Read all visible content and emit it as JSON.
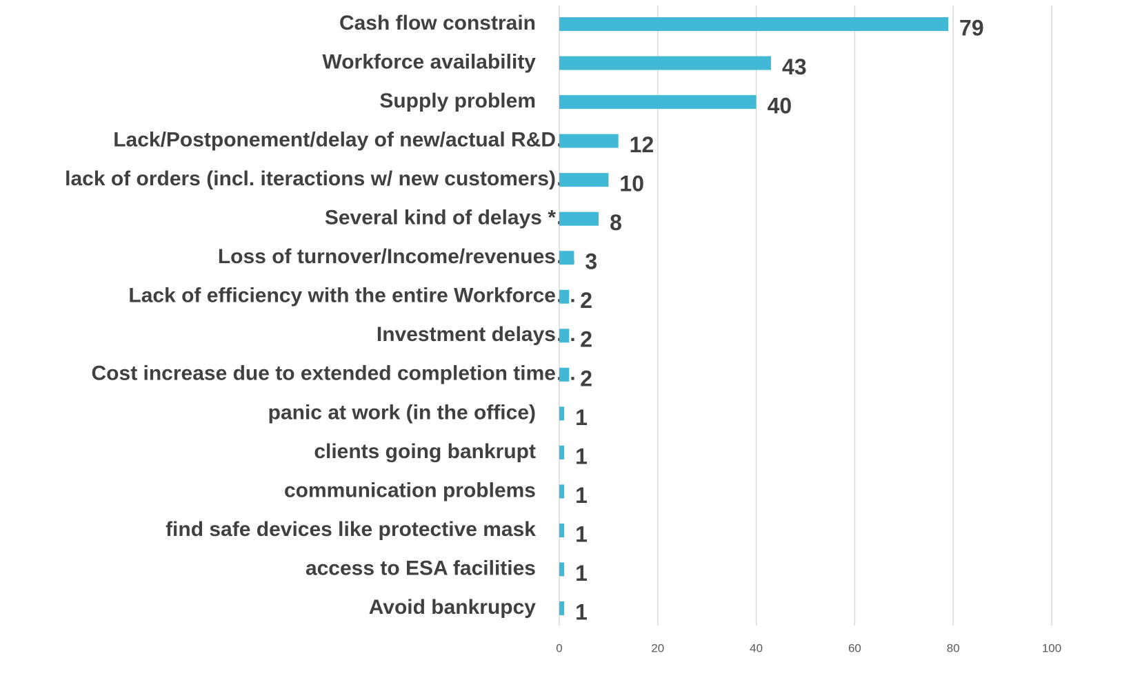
{
  "chart_data": {
    "type": "bar",
    "orientation": "horizontal",
    "categories": [
      "Cash flow constrain",
      "Workforce availability",
      "Supply problem",
      "Lack/Postponement/delay of new/actual R&D…",
      "lack of orders (incl. iteractions w/ new customers)…",
      "Several kind of delays *…",
      "Loss of turnover/Income/revenues…",
      "Lack of efficiency with the entire Workforce…",
      "Investment delays…",
      "Cost increase due to extended completion time…",
      "panic at work (in the office)",
      "clients going bankrupt",
      "communication problems",
      "find safe devices like protective mask",
      "access to ESA facilities",
      "Avoid bankrupcy"
    ],
    "values": [
      79,
      43,
      40,
      12,
      10,
      8,
      3,
      2,
      2,
      2,
      1,
      1,
      1,
      1,
      1,
      1
    ],
    "color": "#41b8d5",
    "xlim": [
      0,
      100
    ],
    "xticks": [
      0,
      20,
      40,
      60,
      80,
      100
    ],
    "grid": true
  }
}
